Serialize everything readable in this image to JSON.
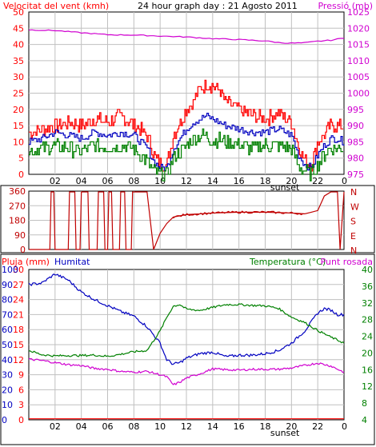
{
  "header": {
    "title": "24 hour graph day : 21 Agosto 2011",
    "wind_label": "Velocitat del vent (kmh)",
    "pressure_label": "Pressió (mb)"
  },
  "colors": {
    "background": "#ffffff",
    "grid": "#c0c0c0",
    "red": "#ff0000",
    "blue": "#0000c0",
    "green": "#008000",
    "magenta": "#d000d0",
    "dir_red": "#c00000"
  },
  "chart_data": [
    {
      "type": "line",
      "panel": "wind_pressure",
      "x_ticks": [
        "02",
        "04",
        "06",
        "08",
        "10",
        "12",
        "14",
        "16",
        "18",
        "20",
        "22",
        "0"
      ],
      "x_marker": "sunset",
      "x_range_hours": [
        0,
        24
      ],
      "y_left": {
        "label": "Velocitat del vent (kmh)",
        "ticks": [
          "0",
          "5",
          "10",
          "15",
          "20",
          "25",
          "30",
          "35",
          "40",
          "45",
          "50"
        ],
        "range": [
          0,
          50
        ]
      },
      "y_right": {
        "label": "Pressió (mb)",
        "ticks": [
          "975",
          "980",
          "985",
          "990",
          "995",
          "1000",
          "1005",
          "1010",
          "1015",
          "1020",
          "1025"
        ],
        "range": [
          975,
          1025
        ]
      },
      "grid": true,
      "series": [
        {
          "name": "Velocitat del vent (kmh)",
          "axis": "left",
          "style": "gust",
          "color": "#ff0000",
          "hour": [
            0,
            1,
            2,
            3,
            4,
            5,
            6,
            7,
            8,
            9,
            9.5,
            10,
            10.5,
            11,
            11.5,
            12,
            12.5,
            13,
            13.5,
            14,
            14.5,
            15,
            16,
            17,
            18,
            19,
            20,
            20.5,
            21,
            21.5,
            22,
            22.5,
            23,
            23.5,
            24
          ],
          "y": [
            13,
            14,
            15,
            16,
            15,
            17,
            16,
            18,
            15,
            12,
            6,
            3,
            3,
            12,
            16,
            20,
            22,
            26,
            28,
            27,
            26,
            22,
            20,
            18,
            17,
            19,
            16,
            9,
            4,
            3,
            10,
            12,
            15,
            15,
            15
          ]
        },
        {
          "name": "Velocitat del vent (kmh) mitjana",
          "axis": "left",
          "style": "average",
          "color": "#0000c0",
          "hour": [
            0,
            1,
            2,
            3,
            4,
            5,
            6,
            7,
            8,
            9,
            9.5,
            10,
            10.5,
            11,
            11.5,
            12,
            12.5,
            13,
            13.5,
            14,
            14.5,
            15,
            16,
            17,
            18,
            19,
            20,
            20.5,
            21,
            21.5,
            22,
            22.5,
            23,
            23.5,
            24
          ],
          "y": [
            10,
            11,
            13,
            12,
            11,
            13,
            12,
            13,
            12,
            8,
            4,
            2,
            2,
            8,
            11,
            14,
            16,
            17,
            18,
            17,
            16,
            15,
            14,
            13,
            13,
            14,
            12,
            6,
            3,
            2,
            6,
            9,
            11,
            11,
            10
          ]
        },
        {
          "name": "Velocitat del vent (kmh) mínima",
          "axis": "left",
          "style": "low",
          "color": "#008000",
          "hour": [
            0,
            1,
            2,
            3,
            4,
            5,
            6,
            7,
            8,
            9,
            9.5,
            10,
            10.5,
            11,
            11.5,
            12,
            12.5,
            13,
            13.5,
            14,
            14.5,
            15,
            16,
            17,
            18,
            19,
            20,
            20.5,
            21,
            21.5,
            22,
            22.5,
            23,
            23.5,
            24
          ],
          "y": [
            7,
            8,
            9,
            8,
            7,
            9,
            8,
            9,
            8,
            4,
            1,
            0,
            0,
            5,
            7,
            9,
            11,
            12,
            12,
            10,
            11,
            10,
            9,
            8,
            9,
            9,
            8,
            3,
            1,
            0,
            3,
            6,
            8,
            8,
            8
          ]
        },
        {
          "name": "Pressió (mb)",
          "axis": "right",
          "color": "#d000d0",
          "hour": [
            0,
            2,
            4,
            6,
            8,
            10,
            12,
            14,
            16,
            18,
            19,
            20,
            21,
            22,
            23,
            24
          ],
          "y": [
            1019.5,
            1019.3,
            1018.6,
            1018,
            1017.9,
            1017.6,
            1017.3,
            1016.8,
            1016.5,
            1016.1,
            1015.6,
            1015.4,
            1015.5,
            1016,
            1016.3,
            1017
          ]
        }
      ]
    },
    {
      "type": "line",
      "panel": "wind_direction",
      "x_range_hours": [
        0,
        24
      ],
      "y_left": {
        "ticks": [
          "0",
          "90",
          "180",
          "270",
          "360"
        ],
        "range": [
          0,
          360
        ]
      },
      "y_right": {
        "ticks": [
          "N",
          "W",
          "S",
          "E",
          "N"
        ]
      },
      "grid": true,
      "series": [
        {
          "name": "Direcció",
          "color": "#c00000",
          "hour": [
            0,
            1.6,
            1.7,
            1.9,
            2.0,
            3.0,
            3.1,
            3.5,
            3.6,
            3.9,
            4.0,
            4.5,
            4.6,
            5.2,
            5.3,
            5.7,
            5.8,
            6.0,
            6.1,
            6.3,
            6.4,
            6.9,
            7.0,
            7.3,
            7.4,
            7.8,
            7.9,
            9.0,
            9.5,
            10.0,
            10.5,
            11,
            12,
            14,
            16,
            18,
            20,
            21,
            21.5,
            22,
            22.5,
            23,
            23.5,
            23.7,
            24
          ],
          "y": [
            0,
            0,
            355,
            355,
            0,
            0,
            355,
            355,
            0,
            0,
            355,
            355,
            0,
            0,
            355,
            355,
            0,
            0,
            355,
            355,
            0,
            0,
            355,
            355,
            0,
            0,
            355,
            355,
            0,
            100,
            160,
            200,
            215,
            225,
            230,
            230,
            225,
            220,
            230,
            240,
            330,
            355,
            355,
            0,
            355
          ]
        }
      ]
    },
    {
      "type": "line",
      "panel": "rain_humidity_temperature",
      "x_ticks": [
        "02",
        "04",
        "06",
        "08",
        "10",
        "12",
        "14",
        "16",
        "18",
        "20",
        "22",
        "0"
      ],
      "x_marker": "sunset",
      "x_range_hours": [
        0,
        24
      ],
      "header_labels": {
        "rain": "Pluja (mm)",
        "humidity": "Humitat",
        "temperature": "Temperatura (°C)",
        "dewpoint": "Punt rosada"
      },
      "y_left": {
        "ticks": [
          "0",
          "3",
          "6",
          "9",
          "12",
          "15",
          "18",
          "21",
          "24",
          "27",
          "30"
        ],
        "range": [
          0,
          30
        ]
      },
      "y_left2": {
        "ticks": [
          "0",
          "10",
          "20",
          "30",
          "40",
          "50",
          "60",
          "70",
          "80",
          "90",
          "100"
        ],
        "range": [
          0,
          100
        ]
      },
      "y_right": {
        "ticks": [
          "4",
          "8",
          "12",
          "16",
          "20",
          "24",
          "28",
          "32",
          "36",
          "40"
        ],
        "range": [
          4,
          40
        ]
      },
      "grid": true,
      "series": [
        {
          "name": "Pluja (mm)",
          "axis": "left",
          "color": "#ff0000",
          "hour": [
            0,
            24
          ],
          "y": [
            0.2,
            0.2
          ]
        },
        {
          "name": "Humitat",
          "axis": "left2",
          "color": "#0000c0",
          "hour": [
            0,
            1,
            2,
            3,
            4,
            5,
            6,
            7,
            8,
            9,
            10,
            10.5,
            11,
            11.5,
            12,
            13,
            14,
            15,
            16,
            17,
            18,
            19,
            20,
            21,
            22,
            22.5,
            23,
            23.5,
            24
          ],
          "y": [
            90,
            91,
            97,
            93,
            85,
            80,
            76,
            72,
            69,
            62,
            51,
            40,
            37,
            38,
            41,
            44,
            45,
            42,
            43,
            43,
            44,
            46,
            51,
            59,
            71,
            74,
            73,
            70,
            70
          ]
        },
        {
          "name": "Temperatura (°C)",
          "axis": "right",
          "color": "#008000",
          "hour": [
            0,
            1,
            2,
            3,
            4,
            5,
            6,
            7,
            8,
            9,
            10,
            10.5,
            11,
            11.5,
            12,
            13,
            14,
            15,
            16,
            17,
            18,
            19,
            20,
            21,
            22,
            23,
            24
          ],
          "y": [
            20.6,
            19.6,
            19.3,
            19.4,
            19.4,
            19.5,
            19.2,
            19.7,
            20.3,
            20.6,
            25.3,
            28.5,
            31.2,
            31.6,
            30.5,
            30.2,
            30.9,
            31.6,
            31.6,
            31.4,
            31.3,
            30.7,
            28.6,
            27.3,
            25.4,
            23.8,
            22.4
          ]
        },
        {
          "name": "Punt rosada",
          "axis": "right",
          "color": "#d000d0",
          "hour": [
            0,
            1,
            2,
            3,
            4,
            5,
            6,
            7,
            8,
            9,
            10,
            10.5,
            11,
            11.5,
            12,
            13,
            14,
            15,
            16,
            17,
            18,
            19,
            20,
            21,
            22,
            23,
            24
          ],
          "y": [
            18.5,
            18.2,
            17.7,
            17.2,
            17.0,
            16.3,
            16.1,
            15.6,
            15.4,
            15.6,
            14.8,
            14.3,
            12.4,
            13.0,
            14.0,
            15.0,
            16.2,
            16.0,
            15.9,
            16.1,
            16.1,
            16.1,
            16.4,
            17.0,
            17.6,
            16.9,
            15.4
          ]
        }
      ]
    }
  ]
}
